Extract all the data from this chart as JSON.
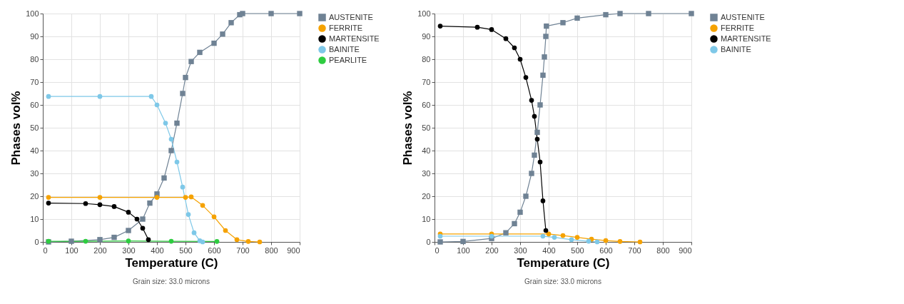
{
  "chart_data": [
    {
      "type": "line",
      "xlabel": "Temperature (C)",
      "ylabel": "Phases vol%",
      "annotations": [
        "Grain size: 33.0 microns"
      ],
      "xlim": [
        0,
        900
      ],
      "xticks": [
        0,
        100,
        200,
        300,
        400,
        500,
        600,
        700,
        800,
        900
      ],
      "ylim": [
        0,
        100
      ],
      "yticks": [
        0,
        10,
        20,
        30,
        40,
        50,
        60,
        70,
        80,
        90,
        100
      ],
      "grid": true,
      "legend": "right",
      "series": [
        {
          "name": "AUSTENITE",
          "color": "#6f8294",
          "marker": "square",
          "x": [
            20,
            100,
            200,
            250,
            300,
            350,
            375,
            400,
            425,
            450,
            470,
            490,
            500,
            520,
            550,
            600,
            630,
            660,
            690,
            700,
            800,
            900
          ],
          "values": [
            0,
            0.3,
            1,
            2,
            5,
            10,
            17,
            21,
            28,
            40,
            52,
            65,
            72,
            79,
            83,
            87,
            91,
            96,
            99.5,
            100,
            100,
            100
          ]
        },
        {
          "name": "FERRITE",
          "color": "#f5a200",
          "marker": "circle",
          "x": [
            20,
            200,
            400,
            500,
            520,
            560,
            600,
            640,
            680,
            720,
            760
          ],
          "values": [
            19.5,
            19.5,
            19.5,
            19.5,
            19.7,
            16,
            11,
            5,
            1,
            0.2,
            0
          ]
        },
        {
          "name": "MARTENSITE",
          "color": "#000000",
          "marker": "circle",
          "x": [
            20,
            150,
            200,
            250,
            300,
            330,
            350,
            370
          ],
          "values": [
            17,
            16.8,
            16.3,
            15.5,
            13,
            10,
            6,
            1
          ]
        },
        {
          "name": "BAINITE",
          "color": "#7ec8e8",
          "marker": "circle",
          "x": [
            20,
            200,
            380,
            400,
            430,
            450,
            470,
            490,
            510,
            530,
            550,
            560
          ],
          "values": [
            63.7,
            63.7,
            63.7,
            60,
            52,
            45,
            35,
            24,
            12,
            4,
            0.5,
            0
          ]
        },
        {
          "name": "PEARLITE",
          "color": "#2ecc40",
          "marker": "circle",
          "x": [
            20,
            150,
            300,
            450,
            610
          ],
          "values": [
            0.3,
            0.3,
            0.4,
            0.3,
            0.2
          ]
        }
      ]
    },
    {
      "type": "line",
      "xlabel": "Temperature (C)",
      "ylabel": "Phases vol%",
      "annotations": [
        "Grain size: 33.0 microns"
      ],
      "xlim": [
        0,
        900
      ],
      "xticks": [
        0,
        100,
        200,
        300,
        400,
        500,
        600,
        700,
        800,
        900
      ],
      "ylim": [
        0,
        100
      ],
      "yticks": [
        0,
        10,
        20,
        30,
        40,
        50,
        60,
        70,
        80,
        90,
        100
      ],
      "grid": true,
      "legend": "right",
      "series": [
        {
          "name": "AUSTENITE",
          "color": "#6f8294",
          "marker": "square",
          "x": [
            20,
            100,
            200,
            250,
            280,
            300,
            320,
            340,
            350,
            360,
            370,
            380,
            385,
            390,
            392,
            450,
            500,
            600,
            650,
            750,
            900
          ],
          "values": [
            0,
            0.2,
            1.5,
            4,
            8,
            13,
            20,
            30,
            38,
            48,
            60,
            73,
            81,
            90,
            94.5,
            96,
            98,
            99.5,
            100,
            100,
            100
          ]
        },
        {
          "name": "FERRITE",
          "color": "#f5a200",
          "marker": "circle",
          "x": [
            20,
            200,
            400,
            450,
            500,
            550,
            600,
            650,
            720
          ],
          "values": [
            3.5,
            3.5,
            3.5,
            2.8,
            2,
            1.2,
            0.6,
            0.2,
            0
          ]
        },
        {
          "name": "MARTENSITE",
          "color": "#000000",
          "marker": "circle",
          "x": [
            20,
            150,
            200,
            250,
            280,
            300,
            320,
            340,
            350,
            360,
            370,
            380,
            390
          ],
          "values": [
            94.5,
            94,
            93,
            89,
            85,
            80,
            72,
            62,
            55,
            45,
            35,
            18,
            5
          ]
        },
        {
          "name": "BAINITE",
          "color": "#7ec8e8",
          "marker": "circle",
          "x": [
            20,
            200,
            380,
            420,
            480,
            540,
            570
          ],
          "values": [
            2.5,
            2.5,
            2.5,
            2,
            1,
            0.3,
            0
          ]
        }
      ]
    }
  ]
}
